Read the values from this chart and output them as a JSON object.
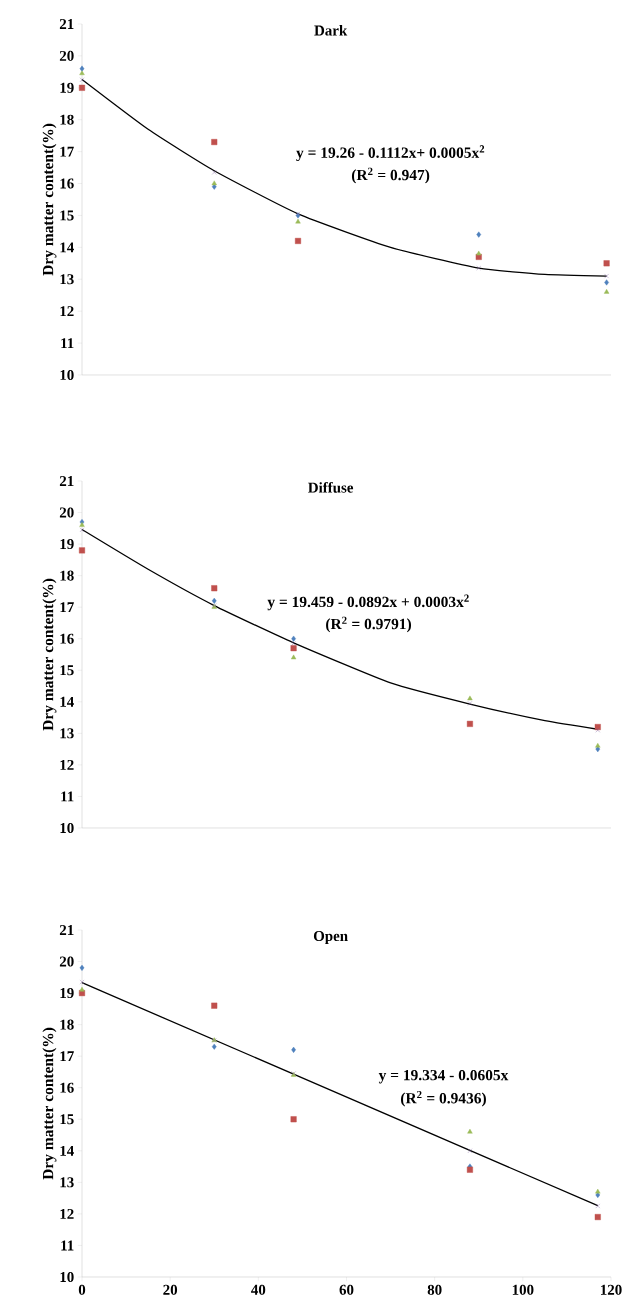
{
  "chart_data": [
    {
      "type": "scatter",
      "title": "Dark",
      "ylabel": "Dry matter content(%)",
      "xlim": [
        0,
        120
      ],
      "ylim": [
        10,
        21
      ],
      "yticks": [
        10,
        11,
        12,
        13,
        14,
        15,
        16,
        17,
        18,
        19,
        20,
        21
      ],
      "tick_labels": "y",
      "annotations": [
        "y = 19.26 - 0.1112x+ 0.0005x$^{2}$",
        "(R$^{2}$ = 0.947)"
      ],
      "series": [
        {
          "color": "#4f81bd",
          "marker": "diamond",
          "x": [
            0,
            30,
            49,
            90,
            119
          ],
          "values": [
            19.6,
            15.9,
            15.0,
            14.4,
            12.9
          ]
        },
        {
          "color": "#c0504d",
          "marker": "square",
          "x": [
            0,
            30,
            49,
            90,
            119
          ],
          "values": [
            19.0,
            17.3,
            14.2,
            13.7,
            13.5
          ]
        },
        {
          "color": "#9bbb59",
          "marker": "triangle",
          "x": [
            0,
            30,
            49,
            90,
            119
          ],
          "values": [
            19.45,
            16.0,
            14.8,
            13.8,
            12.6
          ]
        },
        {
          "color": "#8064a2",
          "marker": "cross",
          "x": [
            0,
            30,
            49,
            90,
            119
          ],
          "values": [
            19.25,
            16.35,
            15.05,
            13.35,
            13.1
          ]
        },
        {
          "type": "line",
          "color": "#000000",
          "marker": "none",
          "x": [
            0,
            15,
            30,
            49,
            70,
            90,
            105,
            119
          ],
          "values": [
            19.26,
            17.7,
            16.4,
            15.05,
            14.0,
            13.35,
            13.15,
            13.1
          ]
        }
      ]
    },
    {
      "type": "scatter",
      "title": "Diffuse",
      "ylabel": "Dry matter content(%)",
      "xlim": [
        0,
        120
      ],
      "ylim": [
        10,
        21
      ],
      "yticks": [
        10,
        11,
        12,
        13,
        14,
        15,
        16,
        17,
        18,
        19,
        20,
        21
      ],
      "tick_labels": "y",
      "annotations": [
        "y = 19.459 - 0.0892x + 0.0003x$^{2}$",
        "(R$^{2}$ = 0.9791)"
      ],
      "series": [
        {
          "color": "#4f81bd",
          "marker": "diamond",
          "x": [
            0,
            30,
            48,
            88,
            117
          ],
          "values": [
            19.7,
            17.2,
            16.0,
            null,
            12.5
          ]
        },
        {
          "color": "#c0504d",
          "marker": "square",
          "x": [
            0,
            30,
            48,
            88,
            117
          ],
          "values": [
            18.8,
            17.6,
            15.7,
            13.3,
            13.2
          ]
        },
        {
          "color": "#9bbb59",
          "marker": "triangle",
          "x": [
            0,
            30,
            48,
            88,
            117
          ],
          "values": [
            19.6,
            17.0,
            15.4,
            14.1,
            12.6
          ]
        },
        {
          "color": "#8064a2",
          "marker": "cross",
          "x": [
            0,
            30,
            48,
            88,
            117
          ],
          "values": [
            19.45,
            17.05,
            15.85,
            13.95,
            13.1
          ]
        },
        {
          "type": "line",
          "color": "#000000",
          "marker": "none",
          "x": [
            0,
            15,
            30,
            48,
            70,
            88,
            105,
            117
          ],
          "values": [
            19.46,
            18.2,
            17.05,
            15.87,
            14.6,
            13.93,
            13.4,
            13.13
          ]
        }
      ]
    },
    {
      "type": "scatter",
      "title": "Open",
      "ylabel": "Dry matter content(%)",
      "xlim": [
        0,
        120
      ],
      "ylim": [
        10,
        21
      ],
      "xticks": [
        0,
        20,
        40,
        60,
        80,
        100,
        120
      ],
      "yticks": [
        10,
        11,
        12,
        13,
        14,
        15,
        16,
        17,
        18,
        19,
        20,
        21
      ],
      "annotations": [
        "y = 19.334 - 0.0605x",
        "(R$^{2}$ = 0.9436)"
      ],
      "series": [
        {
          "color": "#4f81bd",
          "marker": "diamond",
          "x": [
            0,
            30,
            48,
            88,
            117
          ],
          "values": [
            19.8,
            17.3,
            17.2,
            13.5,
            12.6
          ]
        },
        {
          "color": "#c0504d",
          "marker": "square",
          "x": [
            0,
            30,
            48,
            88,
            117
          ],
          "values": [
            19.0,
            18.6,
            15.0,
            13.4,
            11.9
          ]
        },
        {
          "color": "#9bbb59",
          "marker": "triangle",
          "x": [
            0,
            30,
            48,
            88,
            117
          ],
          "values": [
            19.1,
            17.5,
            16.4,
            14.6,
            12.7
          ]
        },
        {
          "color": "#8064a2",
          "marker": "cross",
          "x": [
            0,
            30,
            48,
            88,
            117
          ],
          "values": [
            19.35,
            17.5,
            16.45,
            14.0,
            12.25
          ]
        },
        {
          "type": "line",
          "color": "#000000",
          "marker": "none",
          "x": [
            0,
            117
          ],
          "values": [
            19.33,
            12.26
          ]
        }
      ]
    }
  ]
}
